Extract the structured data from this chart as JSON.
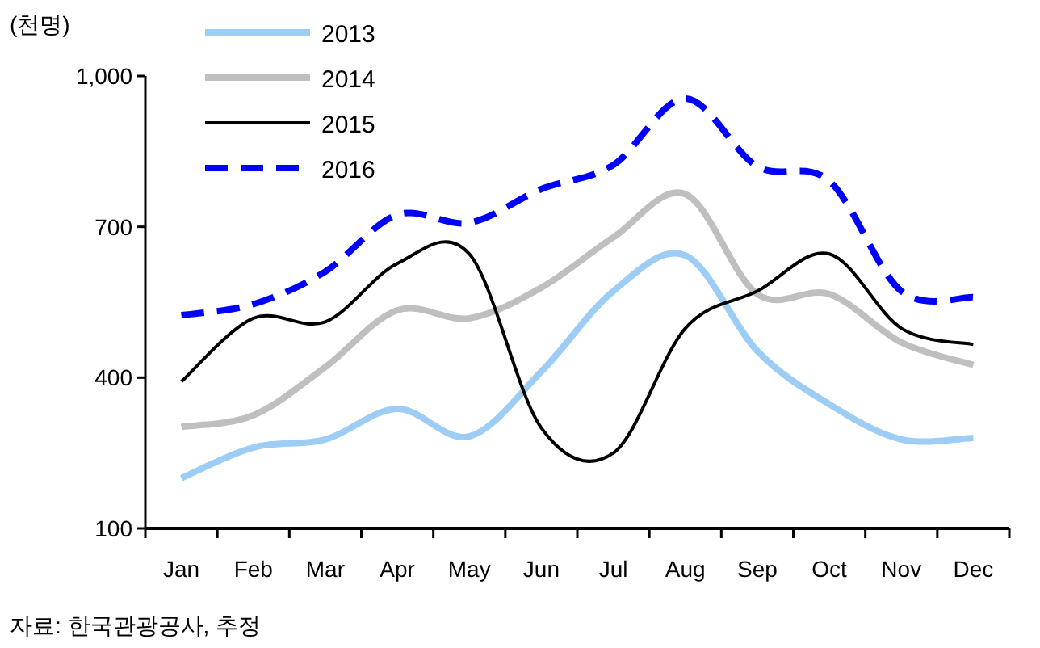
{
  "chart_data": {
    "type": "line",
    "ylabel": "(천명)",
    "categories": [
      "Jan",
      "Feb",
      "Mar",
      "Apr",
      "May",
      "Jun",
      "Jul",
      "Aug",
      "Sep",
      "Oct",
      "Nov",
      "Dec"
    ],
    "series": [
      {
        "name": "2013",
        "color": "#9dcdf5",
        "line_style": "solid",
        "values": [
          200,
          261,
          277,
          338,
          283,
          412,
          572,
          643,
          453,
          347,
          277,
          280
        ]
      },
      {
        "name": "2014",
        "color": "#bfbfbf",
        "line_style": "solid",
        "values": [
          302,
          325,
          421,
          534,
          518,
          579,
          679,
          765,
          566,
          566,
          470,
          425
        ]
      },
      {
        "name": "2015",
        "color": "#000000",
        "line_style": "solid",
        "values": [
          392,
          518,
          511,
          627,
          646,
          300,
          250,
          498,
          572,
          646,
          498,
          466
        ]
      },
      {
        "name": "2016",
        "color": "#0000ff",
        "line_style": "dashed",
        "values": [
          524,
          546,
          611,
          724,
          708,
          775,
          823,
          955,
          820,
          791,
          572,
          560
        ]
      }
    ],
    "ylim": [
      100,
      1000
    ],
    "yticks": [
      100,
      400,
      700,
      {
        "value": 1000,
        "label": "1,000"
      }
    ],
    "grid": false,
    "legend": "top left",
    "marker": "none",
    "annotations": [
      "자료: 한국관광공사, 추정"
    ]
  }
}
